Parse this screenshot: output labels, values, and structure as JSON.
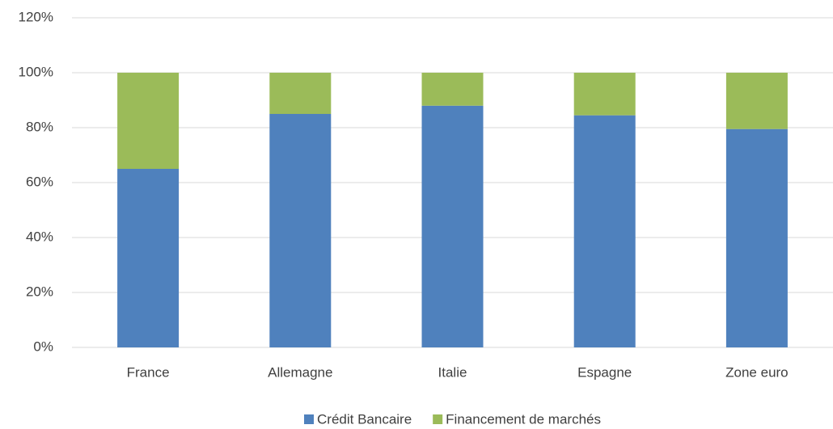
{
  "chart_data": {
    "type": "stacked_bar",
    "categories": [
      "France",
      "Allemagne",
      "Italie",
      "Espagne",
      "Zone euro"
    ],
    "series": [
      {
        "name": "Crédit Bancaire",
        "color": "#4f81bd",
        "values": [
          65,
          85,
          88,
          84.5,
          79.5
        ]
      },
      {
        "name": "Financement de marchés",
        "color": "#9bbb59",
        "values": [
          35,
          15,
          12,
          15.5,
          20.5
        ]
      }
    ],
    "ylim": [
      0,
      120
    ],
    "yticks": [
      {
        "value": 0,
        "label": "0%"
      },
      {
        "value": 20,
        "label": "20%"
      },
      {
        "value": 40,
        "label": "40%"
      },
      {
        "value": 60,
        "label": "60%"
      },
      {
        "value": 80,
        "label": "80%"
      },
      {
        "value": 100,
        "label": "100%"
      },
      {
        "value": 120,
        "label": "120%"
      }
    ],
    "grid": true,
    "legend": "bottom"
  }
}
